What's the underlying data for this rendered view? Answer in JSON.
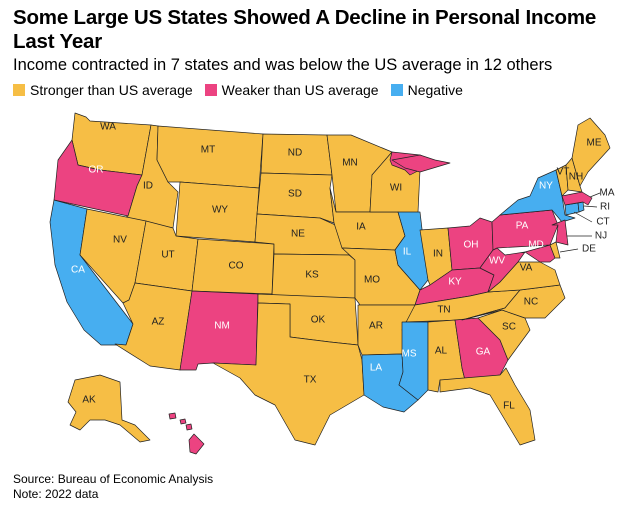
{
  "title": "Some Large US States Showed A Decline in Personal Income Last Year",
  "subtitle": "Income contracted in 7 states and was below the US average in 12 others",
  "legend": [
    {
      "label": "Stronger than US average",
      "color": "#F6BE45"
    },
    {
      "label": "Weaker than US average",
      "color": "#EC4381"
    },
    {
      "label": "Negative",
      "color": "#47AEF0"
    }
  ],
  "colors": {
    "stronger": "#F6BE45",
    "weaker": "#EC4381",
    "negative": "#47AEF0"
  },
  "states": {
    "WA": "stronger",
    "OR": "weaker",
    "CA": "negative",
    "ID": "stronger",
    "NV": "stronger",
    "MT": "stronger",
    "WY": "stronger",
    "UT": "stronger",
    "AZ": "stronger",
    "CO": "stronger",
    "NM": "weaker",
    "ND": "stronger",
    "SD": "stronger",
    "NE": "stronger",
    "KS": "stronger",
    "OK": "stronger",
    "TX": "stronger",
    "MN": "stronger",
    "IA": "stronger",
    "MO": "stronger",
    "AR": "stronger",
    "LA": "negative",
    "WI": "stronger",
    "IL": "negative",
    "MS": "negative",
    "MI": "weaker",
    "IN": "stronger",
    "OH": "weaker",
    "KY": "weaker",
    "TN": "stronger",
    "AL": "stronger",
    "GA": "weaker",
    "FL": "stronger",
    "SC": "stronger",
    "NC": "stronger",
    "VA": "stronger",
    "WV": "weaker",
    "PA": "weaker",
    "NY": "negative",
    "MD": "weaker",
    "DE": "stronger",
    "NJ": "weaker",
    "CT": "negative",
    "RI": "negative",
    "MA": "weaker",
    "VT": "stronger",
    "NH": "stronger",
    "ME": "stronger",
    "AK": "stronger",
    "HI": "weaker"
  },
  "labels": {
    "WA": "WA",
    "OR": "OR",
    "CA": "CA",
    "ID": "ID",
    "NV": "NV",
    "MT": "MT",
    "WY": "WY",
    "UT": "UT",
    "AZ": "AZ",
    "CO": "CO",
    "NM": "NM",
    "ND": "ND",
    "SD": "SD",
    "NE": "NE",
    "KS": "KS",
    "OK": "OK",
    "TX": "TX",
    "MN": "MN",
    "IA": "IA",
    "MO": "MO",
    "AR": "AR",
    "LA": "LA",
    "WI": "WI",
    "IL": "IL",
    "MS": "MS",
    "MI": "MI",
    "IN": "IN",
    "OH": "OH",
    "KY": "KY",
    "TN": "TN",
    "AL": "AL",
    "GA": "GA",
    "FL": "FL",
    "SC": "SC",
    "NC": "NC",
    "VA": "VA",
    "WV": "WV",
    "PA": "PA",
    "NY": "NY",
    "MD": "MD",
    "DE": "DE",
    "NJ": "NJ",
    "CT": "CT",
    "RI": "RI",
    "MA": "MA",
    "VT": "VT",
    "NH": "NH",
    "ME": "ME",
    "AK": "AK"
  },
  "footer": {
    "source": "Source: Bureau of Economic Analysis",
    "note": "Note: 2022 data"
  }
}
